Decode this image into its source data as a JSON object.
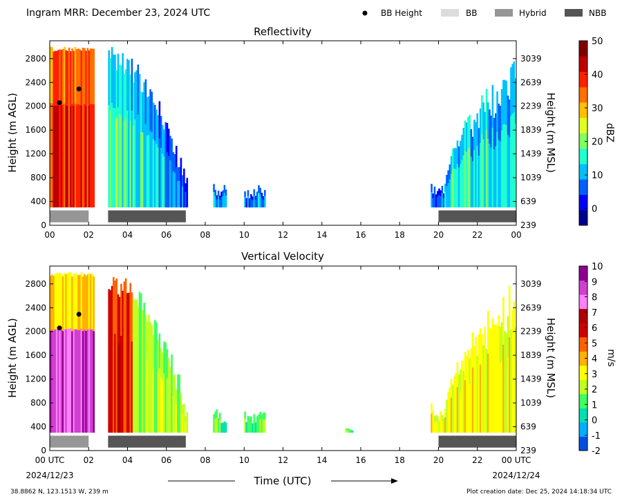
{
  "header": {
    "title": "Ingram MRR:  December 23, 2024 UTC",
    "legend": [
      {
        "label": "BB Height",
        "kind": "dot",
        "color": "#000000"
      },
      {
        "label": "BB",
        "kind": "bar",
        "color": "#dcdcdc"
      },
      {
        "label": "Hybrid",
        "kind": "bar",
        "color": "#969696"
      },
      {
        "label": "NBB",
        "kind": "bar",
        "color": "#555555"
      }
    ]
  },
  "footer": {
    "xlabel": "Time (UTC)",
    "location": "38.8862 N, 123.1513 W, 239 m",
    "creation": "Plot creation date: Dec 25, 2024 14:18:34 UTC",
    "date_start": "2024/12/23",
    "date_end": "2024/12/24"
  },
  "chart_data": [
    {
      "type": "heatmap",
      "title": "Reflectivity",
      "ylabel": "Height (m AGL)",
      "ylabel2": "Height (m MSL)",
      "xlim": [
        0,
        24
      ],
      "ylim": [
        0,
        3100
      ],
      "x_ticks": [
        "00",
        "02",
        "04",
        "06",
        "08",
        "10",
        "12",
        "14",
        "16",
        "18",
        "20",
        "22",
        "00"
      ],
      "y_ticks": [
        0,
        400,
        800,
        1200,
        1600,
        2000,
        2400,
        2800
      ],
      "y2_ticks": [
        "239",
        "639",
        "1039",
        "1439",
        "1839",
        "2239",
        "2639",
        "3039"
      ],
      "colorbar": {
        "label": "dBZ",
        "range": [
          -5,
          50
        ],
        "ticks": [
          0,
          10,
          20,
          30,
          40,
          50
        ]
      },
      "bb_height_points": [
        {
          "x": 0.5,
          "y": 2060
        },
        {
          "x": 1.5,
          "y": 2290
        }
      ],
      "precip_type_bars": [
        {
          "type": "Hybrid",
          "start": 0.0,
          "end": 2.0
        },
        {
          "type": "NBB",
          "start": 3.0,
          "end": 7.0
        },
        {
          "type": "NBB",
          "start": 20.0,
          "end": 24.0
        }
      ],
      "echo_periods": [
        {
          "start": 0.0,
          "end": 2.3,
          "top": 3000
        },
        {
          "start": 3.0,
          "end": 7.1,
          "top": 3000
        },
        {
          "start": 8.4,
          "end": 9.1,
          "top": 700
        },
        {
          "start": 10.0,
          "end": 11.1,
          "top": 680
        },
        {
          "start": 19.6,
          "end": 20.3,
          "top": 800
        },
        {
          "start": 20.3,
          "end": 24.0,
          "top": 3000
        }
      ]
    },
    {
      "type": "heatmap",
      "title": "Vertical Velocity",
      "ylabel": "Height (m AGL)",
      "ylabel2": "Height (m MSL)",
      "xlim": [
        0,
        24
      ],
      "ylim": [
        0,
        3100
      ],
      "x_ticks": [
        "00 UTC",
        "02",
        "04",
        "06",
        "08",
        "10",
        "12",
        "14",
        "16",
        "18",
        "20",
        "22",
        "00 UTC"
      ],
      "y_ticks": [
        0,
        400,
        800,
        1200,
        1600,
        2000,
        2400,
        2800
      ],
      "y2_ticks": [
        "239",
        "639",
        "1039",
        "1439",
        "1839",
        "2239",
        "2639",
        "3039"
      ],
      "colorbar": {
        "label": "m/s",
        "range": [
          -2,
          10
        ],
        "ticks": [
          -2,
          -1,
          0,
          1,
          2,
          3,
          4,
          5,
          6,
          7,
          8,
          9,
          10
        ]
      },
      "bb_height_points": [
        {
          "x": 0.5,
          "y": 2060
        },
        {
          "x": 1.5,
          "y": 2290
        }
      ],
      "precip_type_bars": [
        {
          "type": "Hybrid",
          "start": 0.0,
          "end": 2.0
        },
        {
          "type": "NBB",
          "start": 3.0,
          "end": 7.0
        },
        {
          "type": "NBB",
          "start": 20.0,
          "end": 24.0
        }
      ],
      "echo_periods": [
        {
          "start": 0.0,
          "end": 2.3,
          "top": 3000
        },
        {
          "start": 3.0,
          "end": 7.1,
          "top": 3000
        },
        {
          "start": 8.4,
          "end": 9.1,
          "top": 700
        },
        {
          "start": 10.0,
          "end": 11.1,
          "top": 680
        },
        {
          "start": 15.2,
          "end": 15.6,
          "top": 380
        },
        {
          "start": 19.6,
          "end": 20.3,
          "top": 800
        },
        {
          "start": 20.3,
          "end": 24.0,
          "top": 3000
        }
      ]
    }
  ]
}
